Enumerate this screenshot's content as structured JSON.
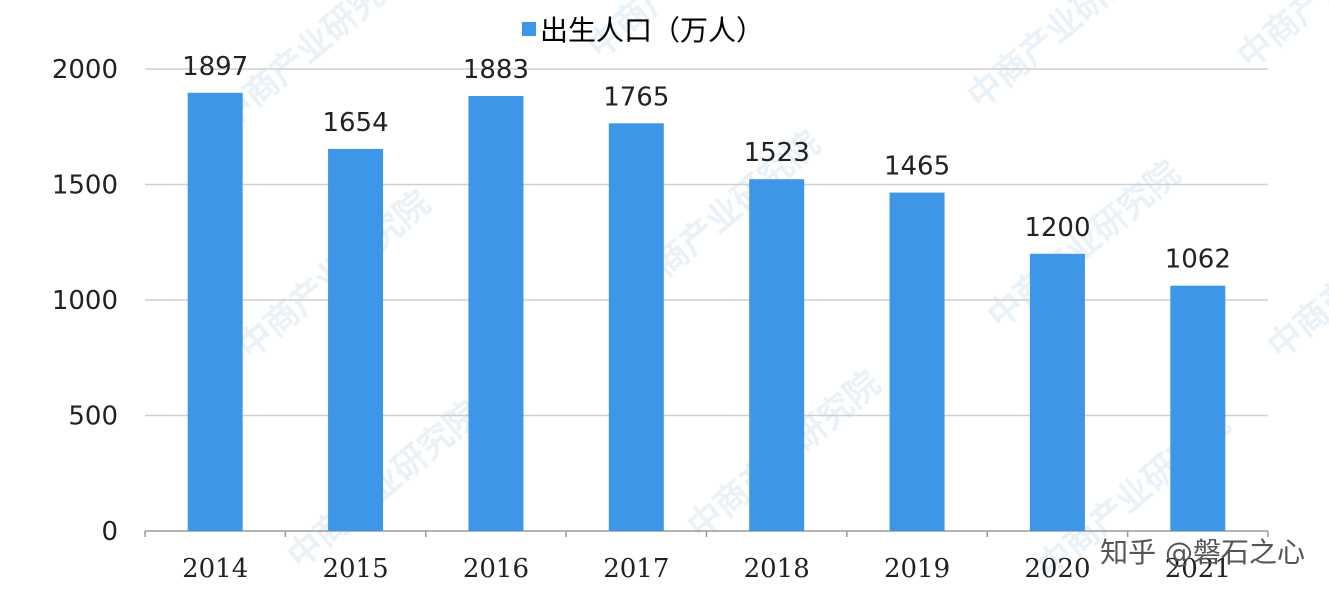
{
  "chart_data": {
    "type": "bar",
    "categories": [
      "2014",
      "2015",
      "2016",
      "2017",
      "2018",
      "2019",
      "2020",
      "2021"
    ],
    "series": [
      {
        "name": "出生人口（万人）",
        "values": [
          1897,
          1654,
          1883,
          1765,
          1523,
          1465,
          1200,
          1062
        ]
      }
    ],
    "ylim": [
      0,
      2000
    ],
    "yticks": [
      0,
      500,
      1000,
      1500,
      2000
    ],
    "data_labels": true,
    "grid": "horizontal",
    "legend": "top-center",
    "bar_color": "#3d96e8"
  },
  "watermark": {
    "text": "中商产业研究院"
  },
  "credit": {
    "text": "知乎 @磐石之心"
  }
}
